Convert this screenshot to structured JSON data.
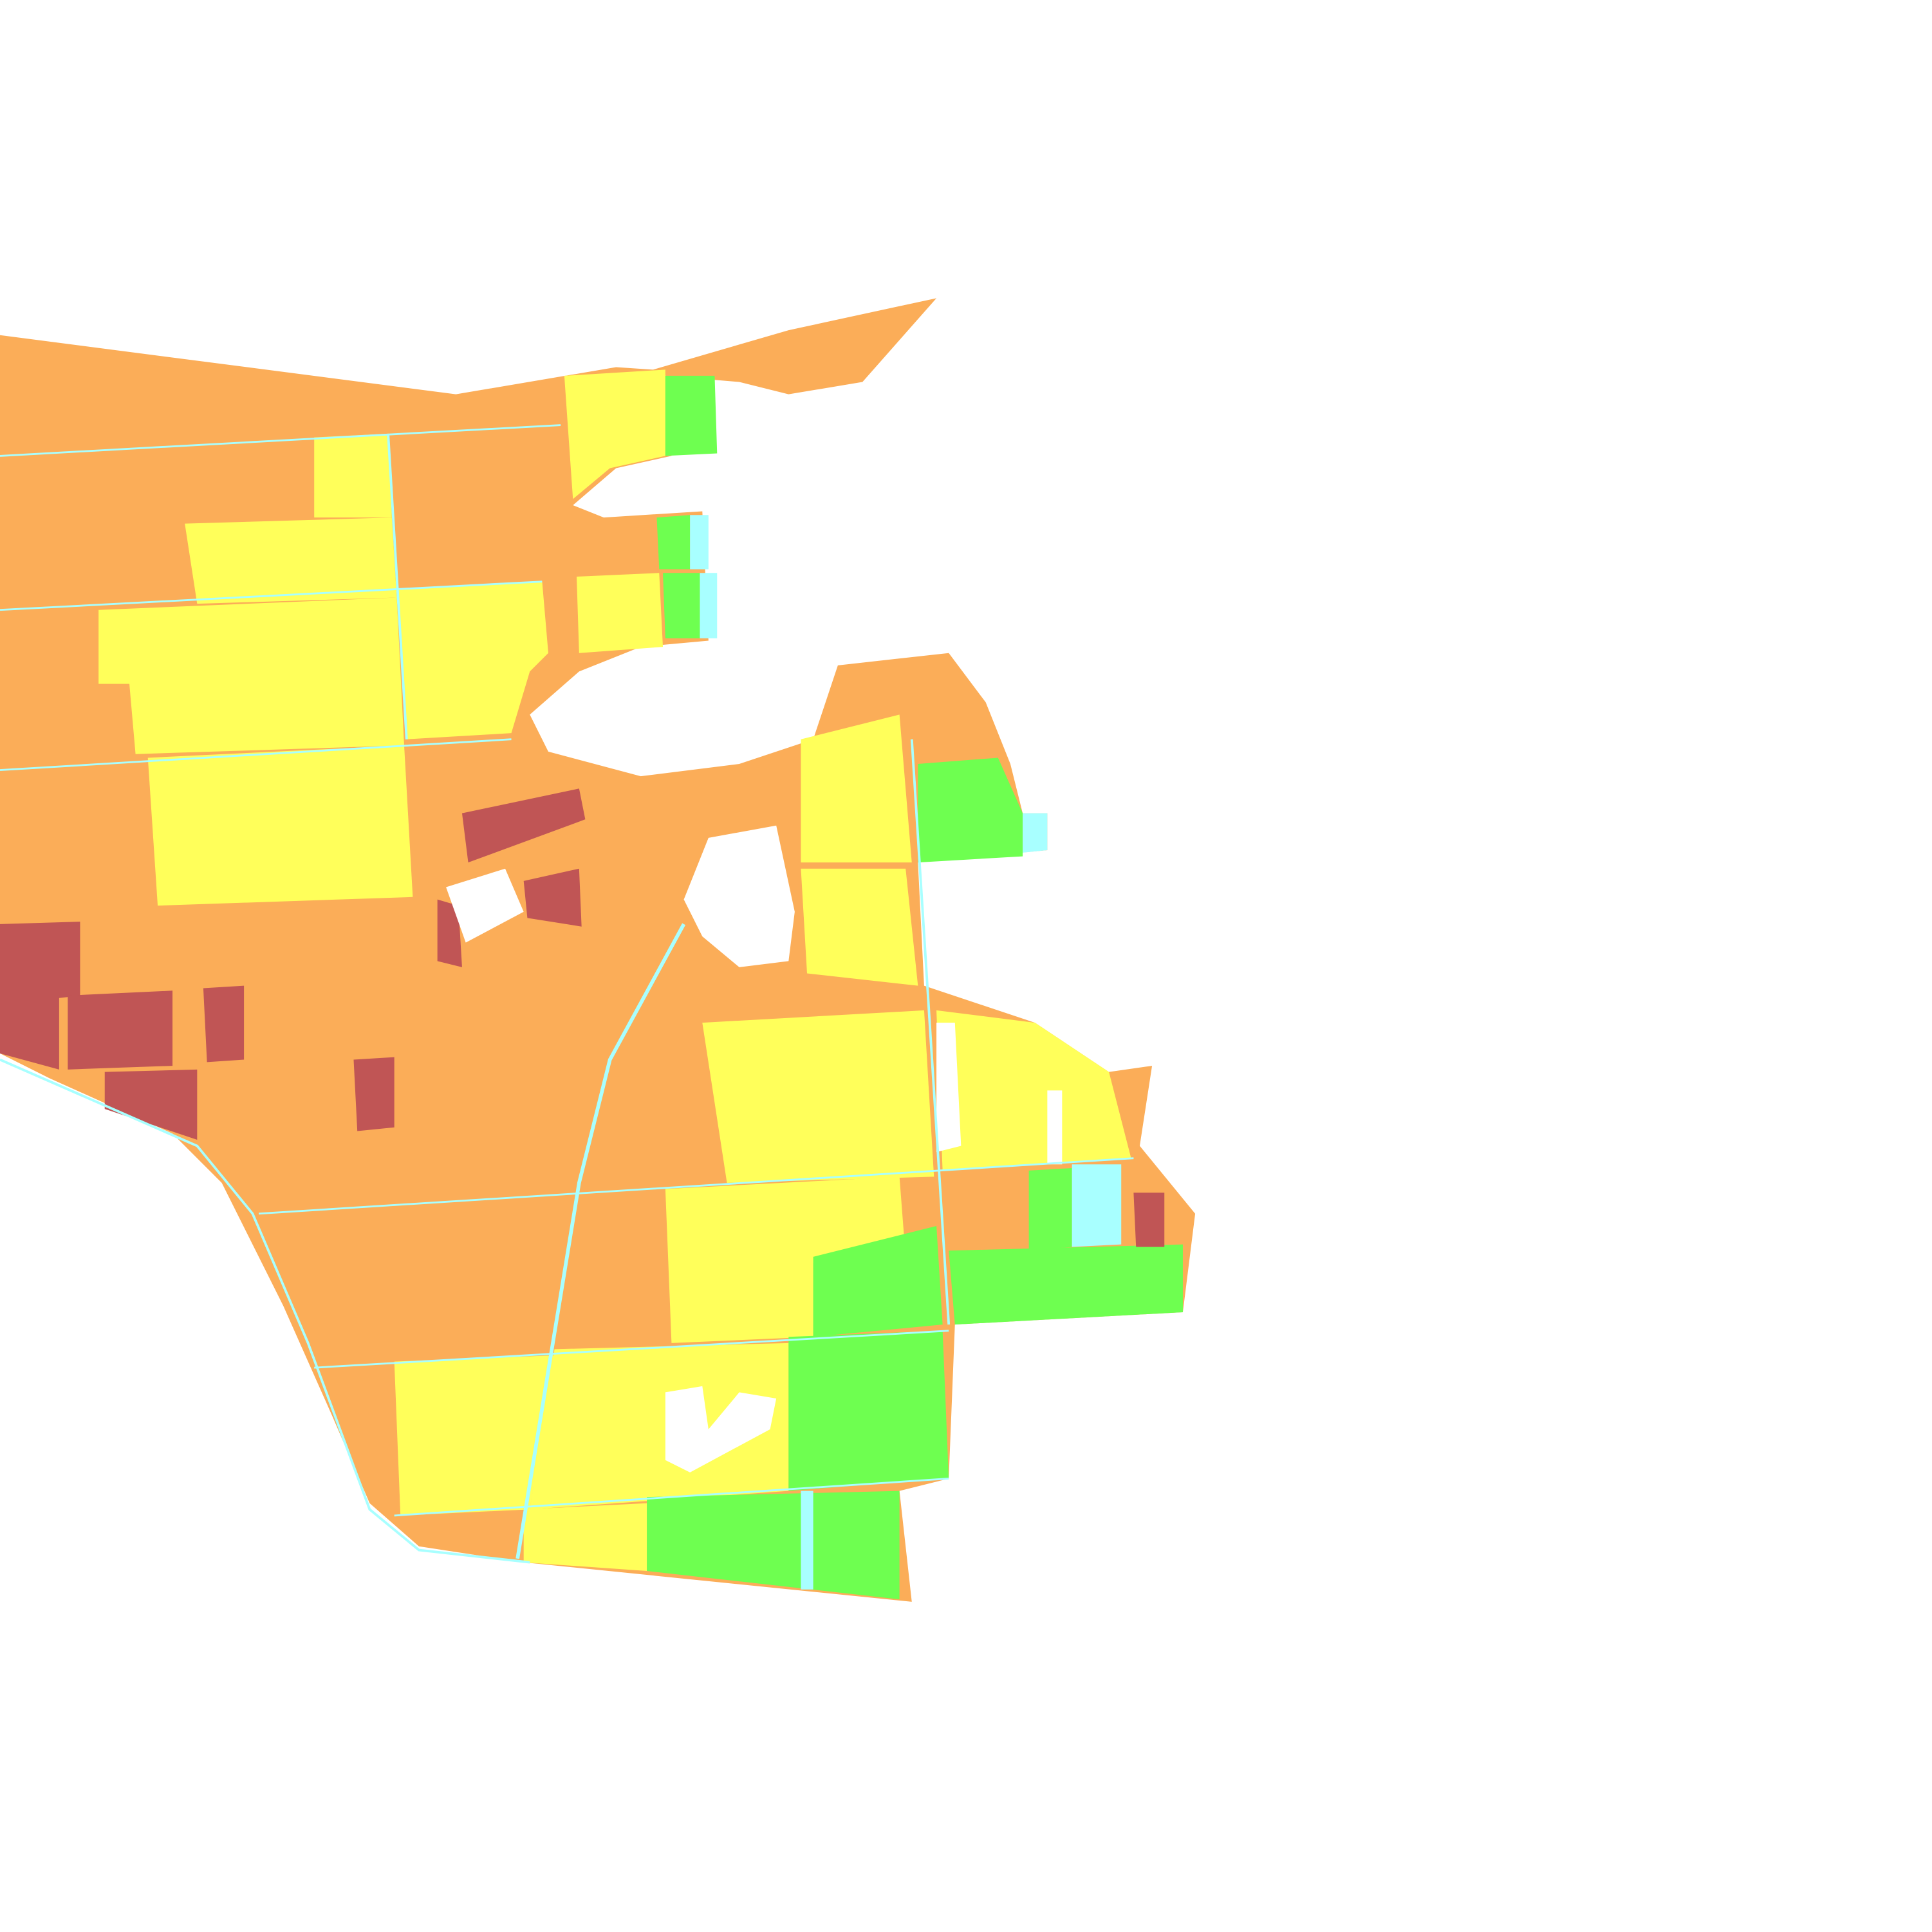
{
  "map": {
    "type": "classified land-cover raster",
    "background": "#ffffff",
    "classes": [
      {
        "key": "c1",
        "color": "#c05555"
      },
      {
        "key": "c2",
        "color": "#fbad58"
      },
      {
        "key": "c3",
        "color": "#ffff5a"
      },
      {
        "key": "c4",
        "color": "#6eff50"
      },
      {
        "key": "c5",
        "color": "#a8ffff"
      }
    ]
  }
}
